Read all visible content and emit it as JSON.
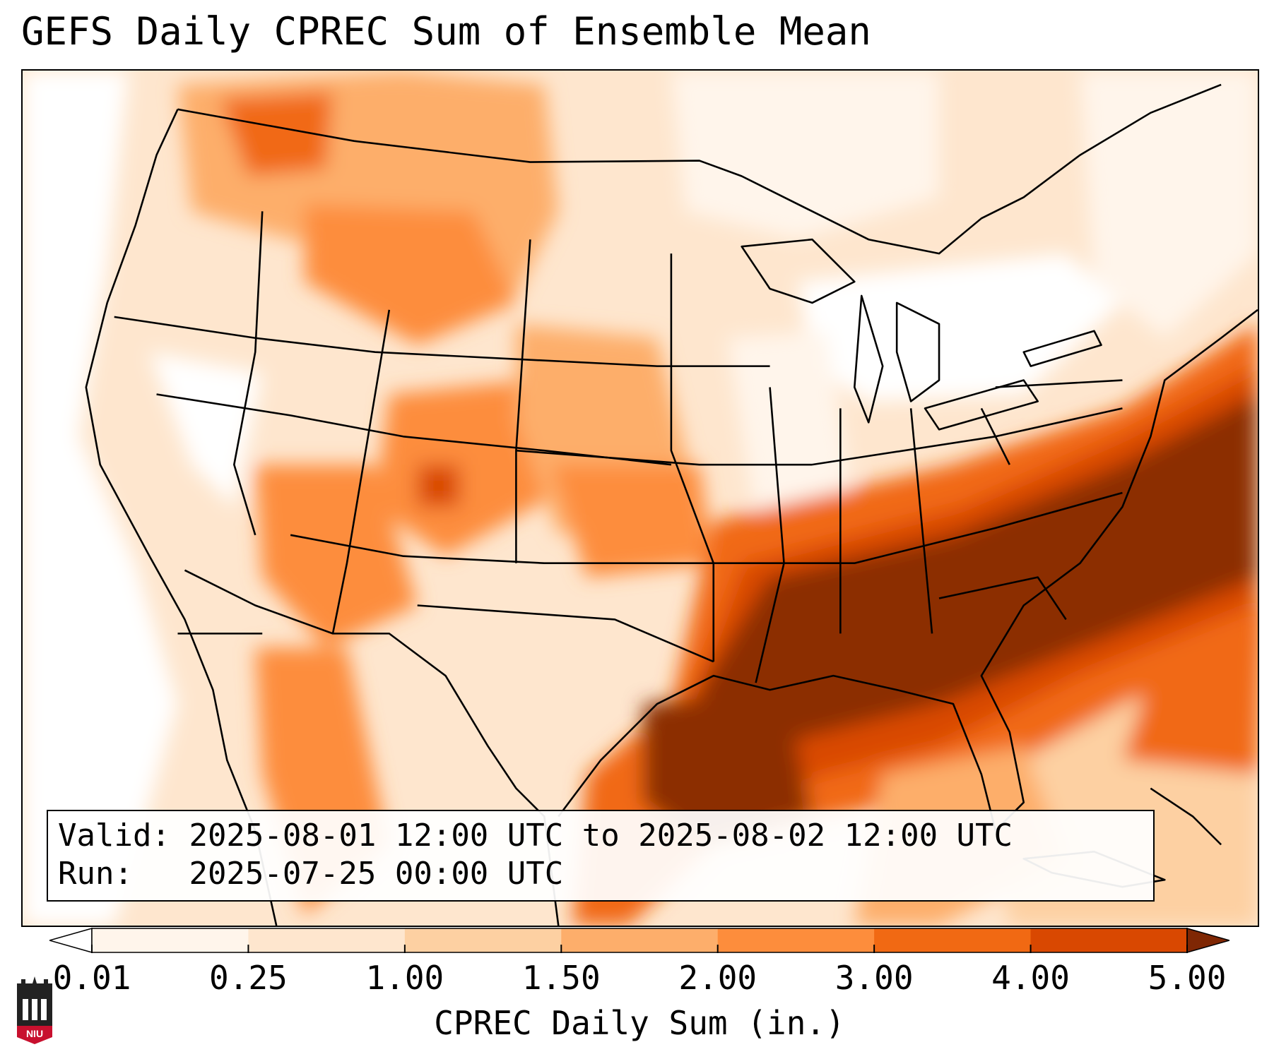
{
  "title": "GEFS Daily CPREC Sum of Ensemble Mean",
  "info": {
    "valid_label": "Valid:",
    "valid_value": "2025-08-01 12:00 UTC to 2025-08-02 12:00 UTC",
    "run_label": "Run:",
    "run_value": "2025-07-25 00:00 UTC"
  },
  "colorbar": {
    "label": "CPREC Daily Sum (in.)",
    "ticks": [
      "0.01",
      "0.25",
      "1.00",
      "1.50",
      "2.00",
      "3.00",
      "4.00",
      "5.00"
    ],
    "colors": [
      "#fff5eb",
      "#fee6ce",
      "#fdd0a2",
      "#fdae6b",
      "#fd8d3c",
      "#f16913",
      "#d94801",
      "#8c2d04"
    ],
    "under_color": "#ffffff",
    "over_color": "#7f2704",
    "extend": "both"
  },
  "logo": {
    "text": "NIU",
    "colors": {
      "red": "#c8102e",
      "dark": "#222222"
    }
  },
  "map": {
    "projection": "Lambert conformal, CONUS",
    "variable": "CPREC daily sum of ensemble mean",
    "boundaries": [
      "states",
      "coastlines",
      "country borders"
    ],
    "heaviest_region": "Southeast US and Gulf Coast"
  }
}
